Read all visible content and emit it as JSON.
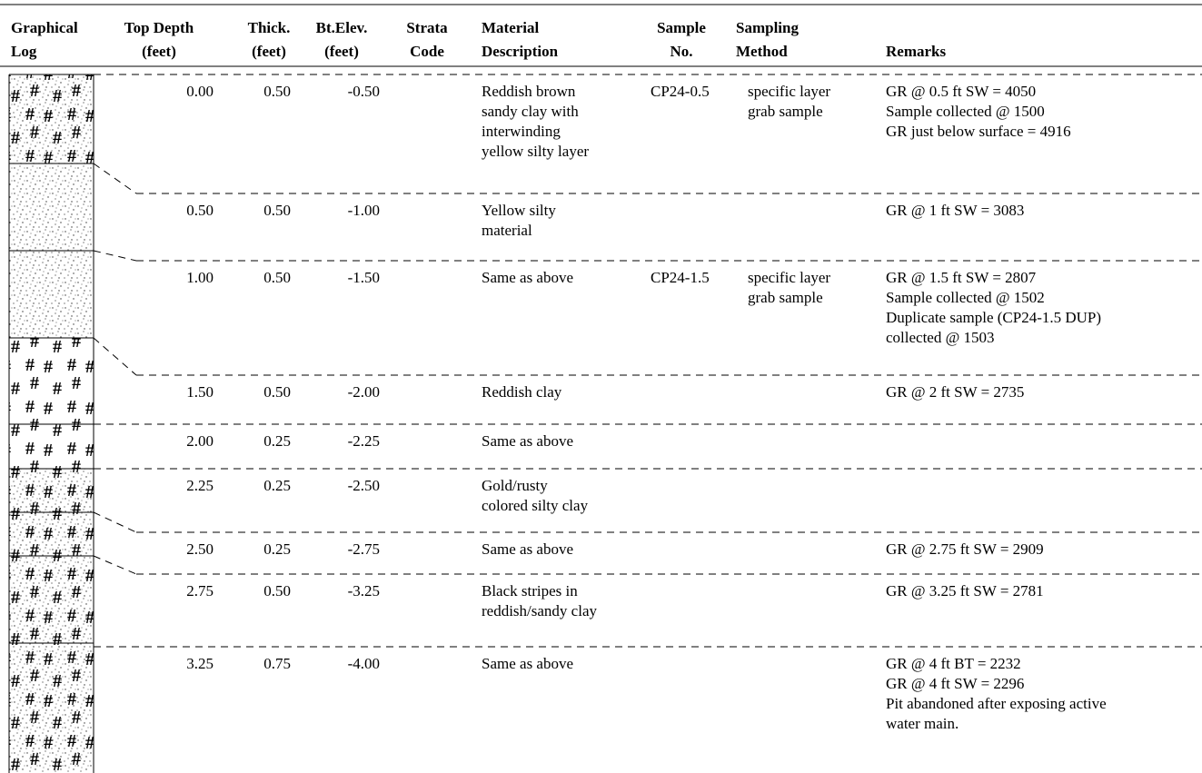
{
  "header": {
    "columns": [
      [
        "Graphical",
        "Log"
      ],
      [
        "Top Depth",
        "(feet)"
      ],
      [
        "Thick.",
        "(feet)"
      ],
      [
        "Bt.Elev.",
        "(feet)"
      ],
      [
        "Strata",
        "Code"
      ],
      [
        "Material",
        "Description"
      ],
      [
        "Sample",
        "No."
      ],
      [
        "Sampling",
        "Method"
      ],
      [
        "Remarks"
      ]
    ]
  },
  "rows": [
    {
      "top_depth": "0.00",
      "thickness": "0.50",
      "elevation": "-0.50",
      "description": [
        "Reddish brown",
        "sandy clay with",
        "interwinding",
        "yellow silty layer"
      ],
      "sample_no": "CP24-0.5",
      "method": [
        "specific layer",
        "grab sample"
      ],
      "remarks": [
        "GR @ 0.5 ft SW = 4050",
        "Sample collected @ 1500",
        "GR just below surface = 4916"
      ]
    },
    {
      "top_depth": "0.50",
      "thickness": "0.50",
      "elevation": "-1.00",
      "description": [
        "Yellow silty",
        "material"
      ],
      "remarks": [
        "GR @ 1 ft SW = 3083"
      ]
    },
    {
      "top_depth": "1.00",
      "thickness": "0.50",
      "elevation": "-1.50",
      "description": [
        "Same as above"
      ],
      "sample_no": "CP24-1.5",
      "method": [
        "specific layer",
        "grab sample"
      ],
      "remarks": [
        "GR @ 1.5 ft SW = 2807",
        "Sample collected @ 1502",
        "Duplicate sample (CP24-1.5 DUP)",
        "collected @ 1503"
      ]
    },
    {
      "top_depth": "1.50",
      "thickness": "0.50",
      "elevation": "-2.00",
      "description": [
        "Reddish clay"
      ],
      "remarks": [
        "GR @ 2 ft SW = 2735"
      ]
    },
    {
      "top_depth": "2.00",
      "thickness": "0.25",
      "elevation": "-2.25",
      "description": [
        "Same as above"
      ]
    },
    {
      "top_depth": "2.25",
      "thickness": "0.25",
      "elevation": "-2.50",
      "description": [
        "Gold/rusty",
        "colored silty clay"
      ]
    },
    {
      "top_depth": "2.50",
      "thickness": "0.25",
      "elevation": "-2.75",
      "description": [
        "Same as above"
      ],
      "remarks": [
        "GR @ 2.75 ft SW = 2909"
      ]
    },
    {
      "top_depth": "2.75",
      "thickness": "0.50",
      "elevation": "-3.25",
      "description": [
        "Black stripes in",
        "reddish/sandy clay"
      ],
      "remarks": [
        "GR @ 3.25 ft SW = 2781"
      ]
    },
    {
      "top_depth": "3.25",
      "thickness": "0.75",
      "elevation": "-4.00",
      "description": [
        "Same as above"
      ],
      "remarks": [
        "GR @ 4 ft BT = 2232",
        "GR @ 4 ft SW = 2296",
        "Pit abandoned after exposing active",
        "water main."
      ]
    }
  ]
}
